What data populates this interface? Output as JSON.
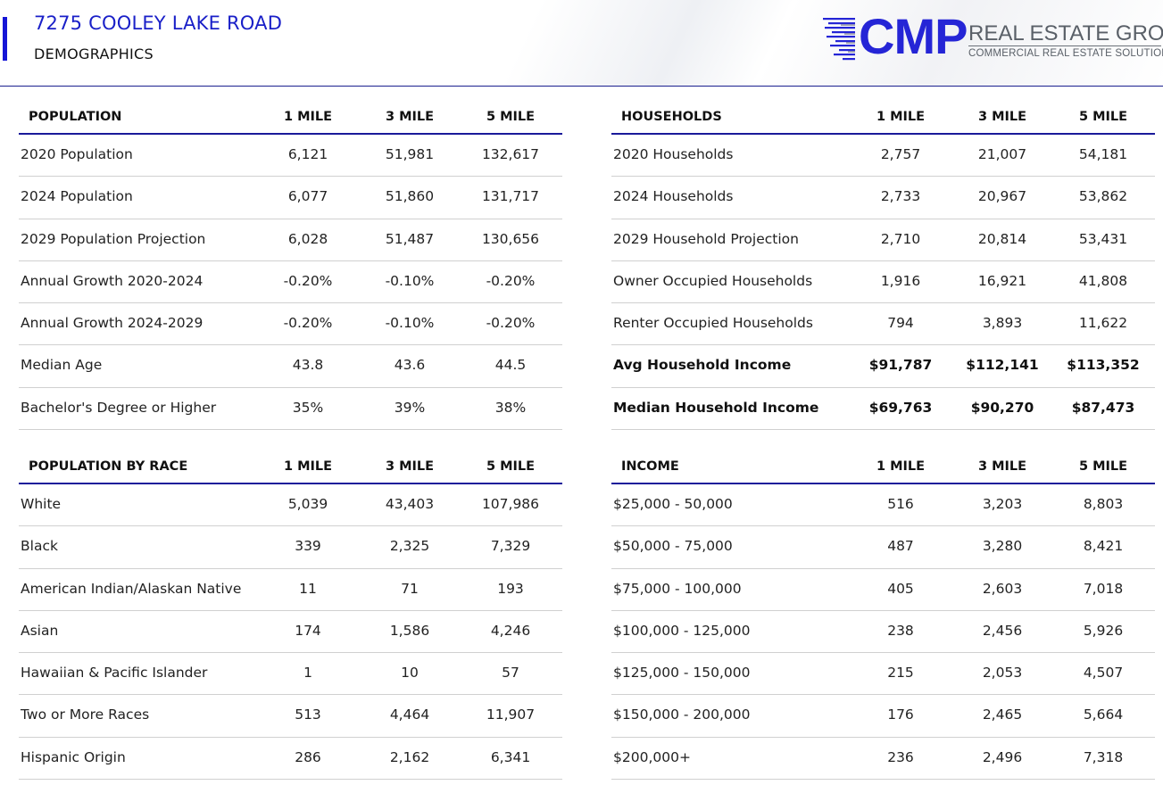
{
  "header": {
    "title": "7275 COOLEY LAKE ROAD",
    "subtitle": "DEMOGRAPHICS",
    "logo": {
      "mark": "CMP",
      "name": "REAL ESTATE GROUP",
      "tagline": "COMMERCIAL REAL ESTATE SOLUTIONS"
    }
  },
  "colors": {
    "accent": "#1a20c8",
    "rule": "#1a1a9a",
    "logo_blue": "#2525d6",
    "logo_gray": "#5a6068"
  },
  "tables": {
    "population": {
      "columns": [
        "POPULATION",
        "1 MILE",
        "3 MILE",
        "5 MILE"
      ],
      "rows": [
        {
          "label": "2020 Population",
          "values": [
            "6,121",
            "51,981",
            "132,617"
          ]
        },
        {
          "label": "2024 Population",
          "values": [
            "6,077",
            "51,860",
            "131,717"
          ]
        },
        {
          "label": "2029 Population Projection",
          "values": [
            "6,028",
            "51,487",
            "130,656"
          ]
        },
        {
          "label": "Annual Growth 2020-2024",
          "values": [
            "-0.20%",
            "-0.10%",
            "-0.20%"
          ]
        },
        {
          "label": "Annual Growth 2024-2029",
          "values": [
            "-0.20%",
            "-0.10%",
            "-0.20%"
          ]
        },
        {
          "label": "Median Age",
          "values": [
            "43.8",
            "43.6",
            "44.5"
          ]
        },
        {
          "label": "Bachelor's Degree or Higher",
          "values": [
            "35%",
            "39%",
            "38%"
          ]
        }
      ]
    },
    "households": {
      "columns": [
        "HOUSEHOLDS",
        "1 MILE",
        "3 MILE",
        "5 MILE"
      ],
      "rows": [
        {
          "label": "2020 Households",
          "values": [
            "2,757",
            "21,007",
            "54,181"
          ]
        },
        {
          "label": "2024 Households",
          "values": [
            "2,733",
            "20,967",
            "53,862"
          ]
        },
        {
          "label": "2029 Household Projection",
          "values": [
            "2,710",
            "20,814",
            "53,431"
          ]
        },
        {
          "label": "Owner Occupied Households",
          "values": [
            "1,916",
            "16,921",
            "41,808"
          ]
        },
        {
          "label": "Renter Occupied Households",
          "values": [
            "794",
            "3,893",
            "11,622"
          ]
        },
        {
          "label": "Avg Household Income",
          "values": [
            "$91,787",
            "$112,141",
            "$113,352"
          ]
        },
        {
          "label": "Median Household Income",
          "values": [
            "$69,763",
            "$90,270",
            "$87,473"
          ]
        }
      ]
    },
    "race": {
      "columns": [
        "POPULATION BY RACE",
        "1 MILE",
        "3 MILE",
        "5 MILE"
      ],
      "rows": [
        {
          "label": "White",
          "values": [
            "5,039",
            "43,403",
            "107,986"
          ]
        },
        {
          "label": "Black",
          "values": [
            "339",
            "2,325",
            "7,329"
          ]
        },
        {
          "label": "American Indian/Alaskan Native",
          "values": [
            "11",
            "71",
            "193"
          ]
        },
        {
          "label": "Asian",
          "values": [
            "174",
            "1,586",
            "4,246"
          ]
        },
        {
          "label": "Hawaiian & Pacific Islander",
          "values": [
            "1",
            "10",
            "57"
          ]
        },
        {
          "label": "Two or More Races",
          "values": [
            "513",
            "4,464",
            "11,907"
          ]
        },
        {
          "label": "Hispanic Origin",
          "values": [
            "286",
            "2,162",
            "6,341"
          ]
        }
      ]
    },
    "income": {
      "columns": [
        "INCOME",
        "1 MILE",
        "3 MILE",
        "5 MILE"
      ],
      "rows": [
        {
          "label": "$25,000 - 50,000",
          "values": [
            "516",
            "3,203",
            "8,803"
          ]
        },
        {
          "label": "$50,000 - 75,000",
          "values": [
            "487",
            "3,280",
            "8,421"
          ]
        },
        {
          "label": "$75,000 - 100,000",
          "values": [
            "405",
            "2,603",
            "7,018"
          ]
        },
        {
          "label": "$100,000 - 125,000",
          "values": [
            "238",
            "2,456",
            "5,926"
          ]
        },
        {
          "label": "$125,000 - 150,000",
          "values": [
            "215",
            "2,053",
            "4,507"
          ]
        },
        {
          "label": "$150,000 - 200,000",
          "values": [
            "176",
            "2,465",
            "5,664"
          ]
        },
        {
          "label": "$200,000+",
          "values": [
            "236",
            "2,496",
            "7,318"
          ]
        }
      ]
    }
  }
}
